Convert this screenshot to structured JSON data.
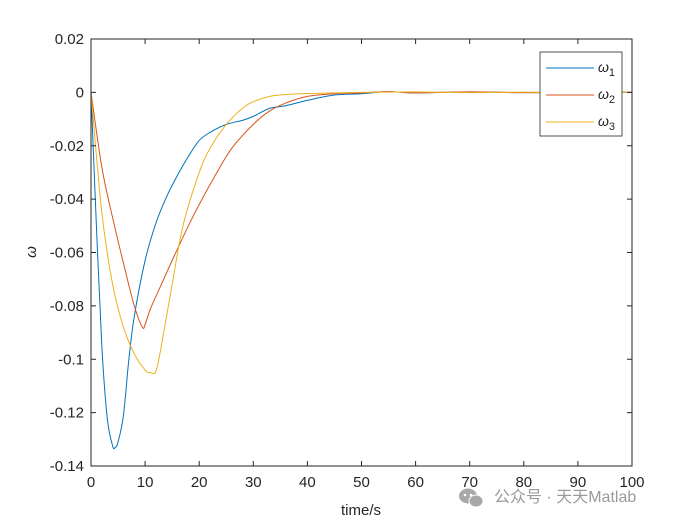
{
  "chart_data": {
    "type": "line",
    "xlabel": "time/s",
    "ylabel": "ω",
    "xlim": [
      0,
      100
    ],
    "ylim": [
      -0.14,
      0.02
    ],
    "x_ticks": [
      0,
      10,
      20,
      30,
      40,
      50,
      60,
      70,
      80,
      90,
      100
    ],
    "y_ticks": [
      0.02,
      0,
      -0.02,
      -0.04,
      -0.06,
      -0.08,
      -0.1,
      -0.12,
      -0.14
    ],
    "y_tick_labels": [
      "0.02",
      "0",
      "-0.02",
      "-0.04",
      "-0.06",
      "-0.08",
      "-0.1",
      "-0.12",
      "-0.14"
    ],
    "grid": false,
    "legend_position": "top-right",
    "series": [
      {
        "name": "ω1",
        "symbol": "ω",
        "subscript": "1",
        "color": "#0072BD",
        "x": [
          0,
          1,
          2,
          3,
          4,
          4.5,
          5,
          6,
          7,
          8,
          10,
          12,
          14,
          16,
          18,
          20,
          22,
          25,
          28,
          30,
          33,
          36,
          40,
          45,
          50,
          55,
          60,
          70,
          80,
          90,
          100
        ],
        "y": [
          0,
          -0.05,
          -0.095,
          -0.122,
          -0.1325,
          -0.133,
          -0.131,
          -0.121,
          -0.1,
          -0.084,
          -0.063,
          -0.049,
          -0.039,
          -0.031,
          -0.024,
          -0.018,
          -0.015,
          -0.012,
          -0.0105,
          -0.009,
          -0.006,
          -0.005,
          -0.003,
          -0.001,
          -0.0005,
          0.0003,
          -0.0002,
          0.0002,
          -0.0001,
          0.0001,
          0
        ]
      },
      {
        "name": "ω2",
        "symbol": "ω",
        "subscript": "2",
        "color": "#D95319",
        "x": [
          0,
          2,
          4,
          6,
          8,
          9.5,
          10,
          11,
          13,
          15,
          18,
          20,
          23,
          26,
          30,
          33,
          36,
          40,
          45,
          50,
          55,
          60,
          70,
          80,
          90,
          100
        ],
        "y": [
          0,
          -0.028,
          -0.047,
          -0.064,
          -0.08,
          -0.088,
          -0.087,
          -0.081,
          -0.072,
          -0.063,
          -0.05,
          -0.042,
          -0.031,
          -0.021,
          -0.012,
          -0.007,
          -0.004,
          -0.0015,
          -0.0005,
          -0.0002,
          0.0003,
          -0.0002,
          0.0002,
          -0.0001,
          0.0001,
          0
        ]
      },
      {
        "name": "ω3",
        "symbol": "ω",
        "subscript": "3",
        "color": "#EDB120",
        "x": [
          0,
          2,
          4,
          6,
          8,
          10,
          11,
          12,
          13,
          15,
          17,
          20,
          22,
          25,
          28,
          30,
          33,
          36,
          40,
          45,
          50,
          60,
          70,
          80,
          90,
          100
        ],
        "y": [
          0,
          -0.045,
          -0.072,
          -0.088,
          -0.098,
          -0.104,
          -0.105,
          -0.1045,
          -0.095,
          -0.072,
          -0.05,
          -0.03,
          -0.021,
          -0.012,
          -0.006,
          -0.0035,
          -0.0015,
          -0.0008,
          -0.0004,
          -0.0002,
          0,
          0.0002,
          -0.0001,
          0.0001,
          -0.0001,
          0
        ]
      }
    ]
  },
  "watermark": {
    "text": "公众号 · 天天Matlab",
    "icon": "wechat-icon"
  }
}
